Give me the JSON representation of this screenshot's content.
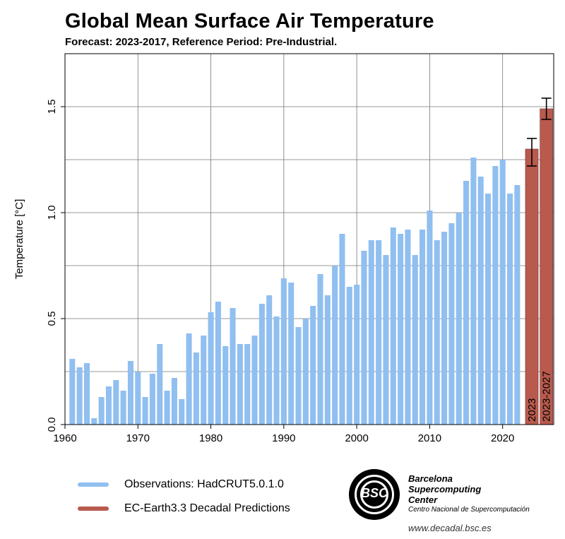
{
  "title": "Global Mean Surface Air Temperature",
  "subtitle": "Forecast: 2023-2017, Reference Period: Pre-Industrial.",
  "colors": {
    "observations": "#90bff0",
    "predictions": "#b85a4e",
    "grid": "#666666"
  },
  "legend": {
    "observations": "Observations: HadCRUT5.0.1.0",
    "predictions": "EC-Earth3.3 Decadal Predictions"
  },
  "logo": {
    "mark": "BSC",
    "name_lines": [
      "Barcelona",
      "Supercomputing",
      "Center"
    ],
    "subtitle": "Centro Nacional de Supercomputación",
    "url": "www.decadal.bsc.es"
  },
  "chart_data": {
    "type": "bar",
    "title": "Global Mean Surface Air Temperature",
    "subtitle": "Forecast: 2023-2017, Reference Period: Pre-Industrial.",
    "xlabel": "",
    "ylabel": "Temperature [°C]",
    "xlim": [
      1960,
      2027
    ],
    "ylim": [
      0,
      1.75
    ],
    "xticks": [
      "1960",
      "1970",
      "1980",
      "1990",
      "2000",
      "2010",
      "2020"
    ],
    "yticks": [
      "0.0",
      "0.5",
      "1.0",
      "1.5"
    ],
    "grid": true,
    "legend_position": "bottom",
    "series": [
      {
        "name": "Observations: HadCRUT5.0.1.0",
        "x": [
          1961,
          1962,
          1963,
          1964,
          1965,
          1966,
          1967,
          1968,
          1969,
          1970,
          1971,
          1972,
          1973,
          1974,
          1975,
          1976,
          1977,
          1978,
          1979,
          1980,
          1981,
          1982,
          1983,
          1984,
          1985,
          1986,
          1987,
          1988,
          1989,
          1990,
          1991,
          1992,
          1993,
          1994,
          1995,
          1996,
          1997,
          1998,
          1999,
          2000,
          2001,
          2002,
          2003,
          2004,
          2005,
          2006,
          2007,
          2008,
          2009,
          2010,
          2011,
          2012,
          2013,
          2014,
          2015,
          2016,
          2017,
          2018,
          2019,
          2020,
          2021,
          2022
        ],
        "values": [
          0.31,
          0.27,
          0.29,
          0.03,
          0.13,
          0.18,
          0.21,
          0.16,
          0.3,
          0.25,
          0.13,
          0.24,
          0.38,
          0.16,
          0.22,
          0.12,
          0.43,
          0.34,
          0.42,
          0.53,
          0.58,
          0.37,
          0.55,
          0.38,
          0.38,
          0.42,
          0.57,
          0.61,
          0.51,
          0.69,
          0.67,
          0.46,
          0.5,
          0.56,
          0.71,
          0.61,
          0.75,
          0.9,
          0.65,
          0.66,
          0.82,
          0.87,
          0.87,
          0.8,
          0.93,
          0.9,
          0.92,
          0.8,
          0.92,
          1.01,
          0.87,
          0.91,
          0.95,
          1.0,
          1.15,
          1.26,
          1.17,
          1.09,
          1.22,
          1.25,
          1.09,
          1.13
        ]
      },
      {
        "name": "EC-Earth3.3 Decadal Predictions",
        "labels": [
          "2023",
          "2023-2027"
        ],
        "values": [
          1.3,
          1.49
        ],
        "error_low": [
          1.22,
          1.44
        ],
        "error_high": [
          1.35,
          1.54
        ]
      }
    ]
  }
}
